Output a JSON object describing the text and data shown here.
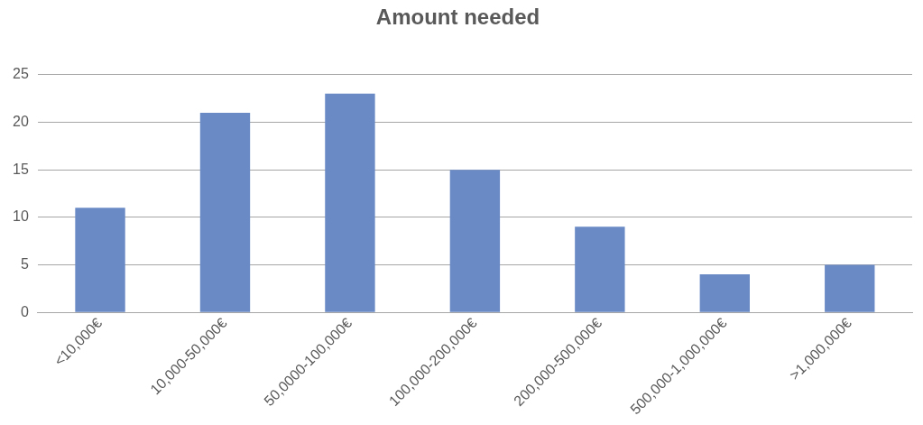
{
  "chart_data": {
    "type": "bar",
    "title": "Amount needed",
    "categories": [
      "<10,000€",
      "10,000-50,000€",
      "50,0000-100,000€",
      "100,000-200,000€",
      "200,000-500,000€",
      "500,000-1,000,000€",
      ">1,000,000€"
    ],
    "values": [
      11,
      21,
      23,
      15,
      9,
      4,
      5
    ],
    "color": "#6a8ac6",
    "ylim": [
      0,
      25
    ],
    "yticks": [
      0,
      5,
      10,
      15,
      20,
      25
    ],
    "grid": "y"
  }
}
